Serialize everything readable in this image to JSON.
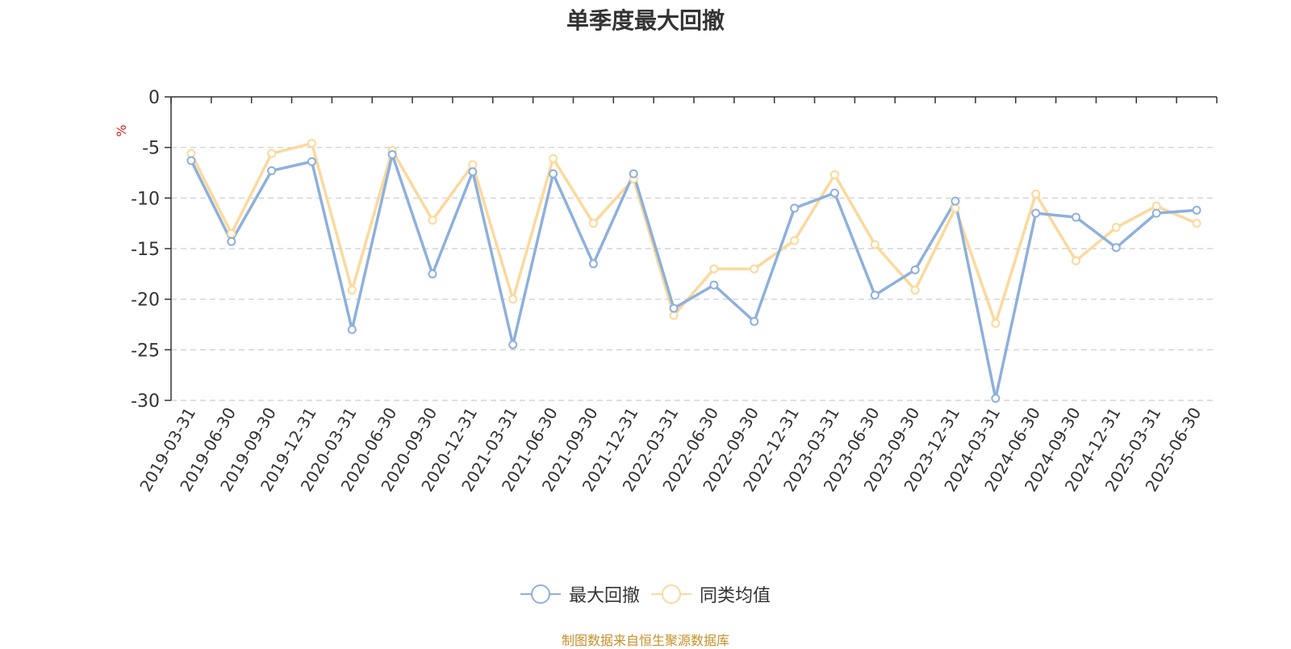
{
  "colors": {
    "series_1": "#8eb0dc",
    "series_2": "#fbd99c",
    "axis": "#333333",
    "grid": "#cccccc",
    "ylabel": "#e02020",
    "source": "#c8902a"
  },
  "legend_items": [
    "最大回撤",
    "同类均值"
  ],
  "source_note": "制图数据来自恒生聚源数据库",
  "chart_data": {
    "type": "line",
    "title": "单季度最大回撤",
    "xlabel": "",
    "ylabel": "%",
    "ylim": [
      -30,
      0
    ],
    "yticks": [
      0,
      -5,
      -10,
      -15,
      -20,
      -25,
      -30
    ],
    "grid": true,
    "legend_position": "bottom",
    "categories": [
      "2019-03-31",
      "2019-06-30",
      "2019-09-30",
      "2019-12-31",
      "2020-03-31",
      "2020-06-30",
      "2020-09-30",
      "2020-12-31",
      "2021-03-31",
      "2021-06-30",
      "2021-09-30",
      "2021-12-31",
      "2022-03-31",
      "2022-06-30",
      "2022-09-30",
      "2022-12-31",
      "2023-03-31",
      "2023-06-30",
      "2023-09-30",
      "2023-12-31",
      "2024-03-31",
      "2024-06-30",
      "2024-09-30",
      "2024-12-31",
      "2025-03-31",
      "2025-06-30"
    ],
    "series": [
      {
        "name": "最大回撤",
        "values": [
          -6.3,
          -14.3,
          -7.3,
          -6.4,
          -23.0,
          -5.7,
          -17.5,
          -7.4,
          -24.5,
          -7.6,
          -16.5,
          -7.6,
          -20.9,
          -18.6,
          -22.2,
          -11.0,
          -9.5,
          -19.6,
          -17.1,
          -10.3,
          -29.8,
          -11.5,
          -11.9,
          -14.9,
          -11.5,
          -11.2
        ]
      },
      {
        "name": "同类均值",
        "values": [
          -5.6,
          -13.5,
          -5.6,
          -4.6,
          -19.1,
          -5.3,
          -12.2,
          -6.7,
          -20.0,
          -6.1,
          -12.5,
          -8.1,
          -21.6,
          -17.0,
          -17.0,
          -14.2,
          -7.7,
          -14.6,
          -19.1,
          -11.0,
          -22.4,
          -9.6,
          -16.2,
          -12.9,
          -10.8,
          -12.5
        ]
      }
    ]
  }
}
